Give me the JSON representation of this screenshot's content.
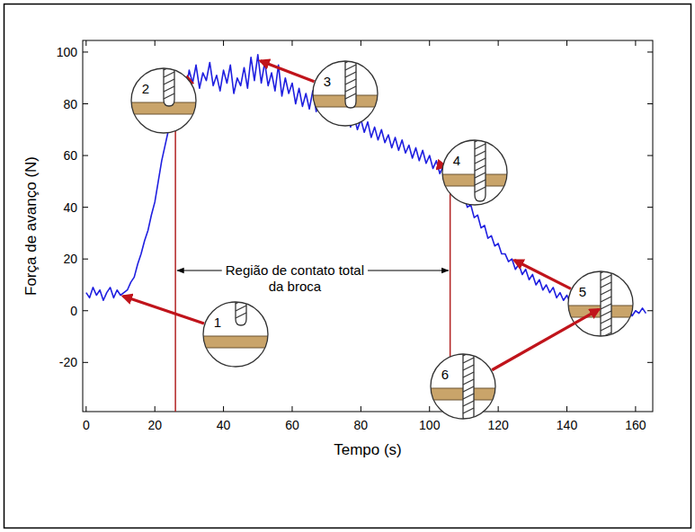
{
  "chart_data": {
    "type": "line",
    "x_label": "Tempo (s)",
    "y_label": "Força de avanço (N)",
    "color": "#1f1fe0",
    "grid": false,
    "xlim": [
      -1,
      165
    ],
    "ylim": [
      -39,
      104.5
    ],
    "xticks": [
      0,
      20,
      40,
      60,
      80,
      100,
      120,
      140,
      160
    ],
    "yticks": [
      -20,
      0,
      20,
      40,
      60,
      80,
      100
    ],
    "x": [
      0,
      1,
      2,
      3,
      4,
      5,
      6,
      7,
      8,
      9,
      10,
      11,
      12,
      13,
      14,
      15,
      16,
      17,
      18,
      19,
      20,
      21,
      22,
      23,
      24,
      25,
      26,
      27,
      28,
      29,
      30,
      31,
      32,
      33,
      34,
      35,
      36,
      37,
      38,
      39,
      40,
      41,
      42,
      43,
      44,
      45,
      46,
      47,
      48,
      49,
      50,
      51,
      52,
      53,
      54,
      55,
      56,
      57,
      58,
      59,
      60,
      61,
      62,
      63,
      64,
      65,
      66,
      67,
      68,
      69,
      70,
      71,
      72,
      73,
      74,
      75,
      76,
      77,
      78,
      79,
      80,
      81,
      82,
      83,
      84,
      85,
      86,
      87,
      88,
      89,
      90,
      91,
      92,
      93,
      94,
      95,
      96,
      97,
      98,
      99,
      100,
      101,
      102,
      103,
      104,
      105,
      106,
      107,
      108,
      109,
      110,
      111,
      112,
      113,
      114,
      115,
      116,
      117,
      118,
      119,
      120,
      121,
      122,
      123,
      124,
      125,
      126,
      127,
      128,
      129,
      130,
      131,
      132,
      133,
      134,
      135,
      136,
      137,
      138,
      139,
      140,
      141,
      142,
      143,
      144,
      145,
      146,
      147,
      148,
      149,
      150,
      151,
      152,
      153,
      154,
      155,
      156,
      157,
      158,
      159,
      160,
      161,
      162,
      163
    ],
    "values": [
      7,
      5,
      9,
      6,
      8,
      4,
      7,
      9,
      5,
      8,
      6,
      7,
      8,
      11,
      13,
      18,
      22,
      27,
      31,
      37,
      42,
      50,
      58,
      64,
      70,
      74,
      79,
      83,
      86,
      84,
      93,
      88,
      95,
      86,
      92,
      89,
      96,
      87,
      91,
      85,
      93,
      88,
      95,
      84,
      90,
      87,
      94,
      86,
      98,
      89,
      99,
      88,
      96,
      87,
      92,
      85,
      95,
      83,
      90,
      84,
      88,
      80,
      86,
      79,
      84,
      78,
      85,
      77,
      82,
      76,
      81,
      75,
      79,
      74,
      78,
      72,
      77,
      71,
      75,
      70,
      74,
      69,
      73,
      67,
      71,
      66,
      70,
      65,
      68,
      63,
      67,
      62,
      66,
      61,
      64,
      59,
      63,
      58,
      62,
      57,
      60,
      55,
      58,
      53,
      56,
      51,
      53,
      48,
      49,
      44,
      45,
      40,
      41,
      36,
      37,
      32,
      33,
      28,
      29,
      25,
      26,
      22,
      22,
      19,
      20,
      16,
      18,
      14,
      16,
      12,
      14,
      10,
      12,
      8,
      10,
      7,
      9,
      5,
      7,
      4,
      6,
      3,
      5,
      2,
      4,
      1,
      3,
      0,
      2,
      -1,
      1,
      -2,
      1,
      -1,
      2,
      -2,
      0,
      -1,
      1,
      -2,
      0,
      -1,
      1,
      -1
    ],
    "region": {
      "label": "Região de contato total da broca",
      "start": 26,
      "end": 106
    },
    "annotations": [
      {
        "label": "1",
        "x": 10,
        "y": 6
      },
      {
        "label": "2",
        "x": 29,
        "y": 88
      },
      {
        "label": "3",
        "x": 50,
        "y": 97
      },
      {
        "label": "4",
        "x": 104,
        "y": 56
      },
      {
        "label": "5",
        "x": 124,
        "y": 20
      },
      {
        "label": "6",
        "x": 150,
        "y": 1
      }
    ]
  }
}
